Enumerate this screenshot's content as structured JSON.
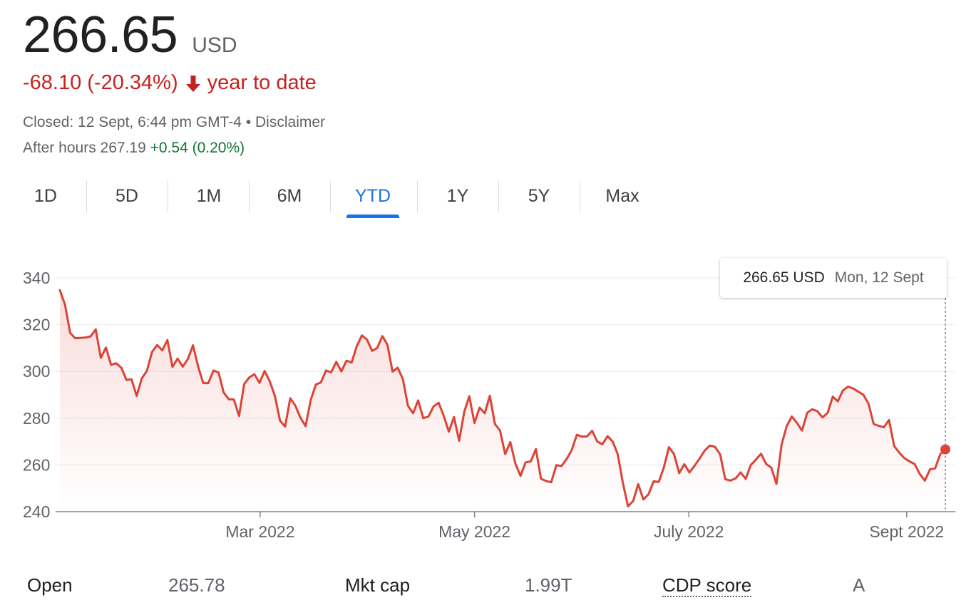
{
  "header": {
    "price": "266.65",
    "currency": "USD",
    "change": "-68.10 (-20.34%)",
    "change_period": "year to date",
    "closed_text": "Closed: 12 Sept, 6:44 pm GMT-4 •",
    "disclaimer": "Disclaimer",
    "after_hours_label": "After hours 267.19",
    "after_hours_change": "+0.54 (0.20%)"
  },
  "tabs": [
    {
      "label": "1D",
      "active": false
    },
    {
      "label": "5D",
      "active": false
    },
    {
      "label": "1M",
      "active": false
    },
    {
      "label": "6M",
      "active": false
    },
    {
      "label": "YTD",
      "active": true
    },
    {
      "label": "1Y",
      "active": false
    },
    {
      "label": "5Y",
      "active": false
    },
    {
      "label": "Max",
      "active": false
    }
  ],
  "tooltip": {
    "price": "266.65 USD",
    "date": "Mon, 12 Sept"
  },
  "stats": [
    {
      "label": "Open",
      "value": "265.78",
      "dotted": false
    },
    {
      "label": "Mkt cap",
      "value": "1.99T",
      "dotted": false
    },
    {
      "label": "CDP score",
      "value": "A",
      "dotted": true
    }
  ],
  "colors": {
    "line": "#db4437",
    "grid": "#ebebeb",
    "axis": "#5f6368",
    "accent": "#1a73e8",
    "negative": "#c5221f",
    "positive": "#137333"
  },
  "chart_data": {
    "type": "area",
    "ylim": [
      240,
      340
    ],
    "yticks": [
      240,
      260,
      280,
      300,
      320,
      340
    ],
    "xlim": [
      "2022-01-03",
      "2022-09-12"
    ],
    "xticks": [
      {
        "label": "Mar 2022",
        "date": "2022-03-01"
      },
      {
        "label": "May 2022",
        "date": "2022-05-01"
      },
      {
        "label": "July 2022",
        "date": "2022-07-01"
      },
      {
        "label": "Sept 2022",
        "date": "2022-09-01"
      }
    ],
    "series": [
      {
        "values": [
          334.8,
          328.5,
          316.5,
          314.2,
          314.3,
          314.5,
          315.0,
          318.0,
          305.8,
          310.2,
          302.8,
          303.5,
          301.6,
          296.4,
          296.6,
          289.5,
          297.0,
          300.2,
          308.3,
          311.3,
          309.0,
          313.4,
          301.9,
          305.5,
          302.0,
          305.3,
          311.2,
          302.2,
          295.0,
          295.0,
          300.4,
          299.5,
          291.0,
          288.1,
          288.0,
          280.9,
          294.6,
          297.4,
          298.8,
          295.1,
          300.2,
          295.8,
          289.6,
          279.0,
          276.4,
          288.5,
          285.4,
          280.2,
          276.6,
          287.7,
          294.4,
          295.3,
          300.4,
          299.6,
          304.1,
          300.0,
          304.6,
          303.8,
          310.8,
          315.4,
          313.6,
          308.8,
          310.0,
          315.1,
          311.4,
          299.9,
          301.6,
          296.8,
          285.3,
          282.1,
          287.6,
          280.0,
          280.7,
          285.0,
          286.6,
          281.0,
          274.2,
          280.5,
          270.3,
          282.7,
          289.4,
          277.9,
          284.5,
          282.1,
          289.6,
          277.5,
          274.7,
          264.6,
          269.8,
          260.6,
          255.3,
          261.1,
          261.5,
          266.8,
          254.1,
          253.1,
          252.6,
          259.9,
          259.5,
          262.5,
          266.3,
          272.9,
          272.1,
          272.2,
          274.6,
          270.0,
          268.8,
          272.3,
          270.0,
          264.6,
          252.3,
          242.3,
          244.5,
          251.8,
          245.2,
          247.4,
          253.0,
          252.7,
          258.8,
          267.6,
          264.6,
          256.5,
          260.3,
          256.8,
          259.6,
          262.8,
          266.2,
          268.3,
          267.7,
          264.5,
          253.9,
          253.3,
          254.2,
          256.8,
          254.1,
          260.0,
          262.3,
          264.8,
          260.4,
          258.8,
          251.9,
          268.7,
          276.5,
          280.7,
          278.0,
          274.7,
          282.3,
          283.8,
          283.0,
          280.3,
          282.3,
          289.2,
          287.2,
          291.9,
          293.5,
          292.7,
          291.3,
          290.0,
          286.1,
          277.5,
          276.7,
          276.1,
          279.2,
          268.1,
          265.2,
          262.9,
          261.5,
          260.4,
          256.1,
          253.3,
          258.1,
          258.5,
          264.5,
          266.65
        ]
      }
    ]
  }
}
